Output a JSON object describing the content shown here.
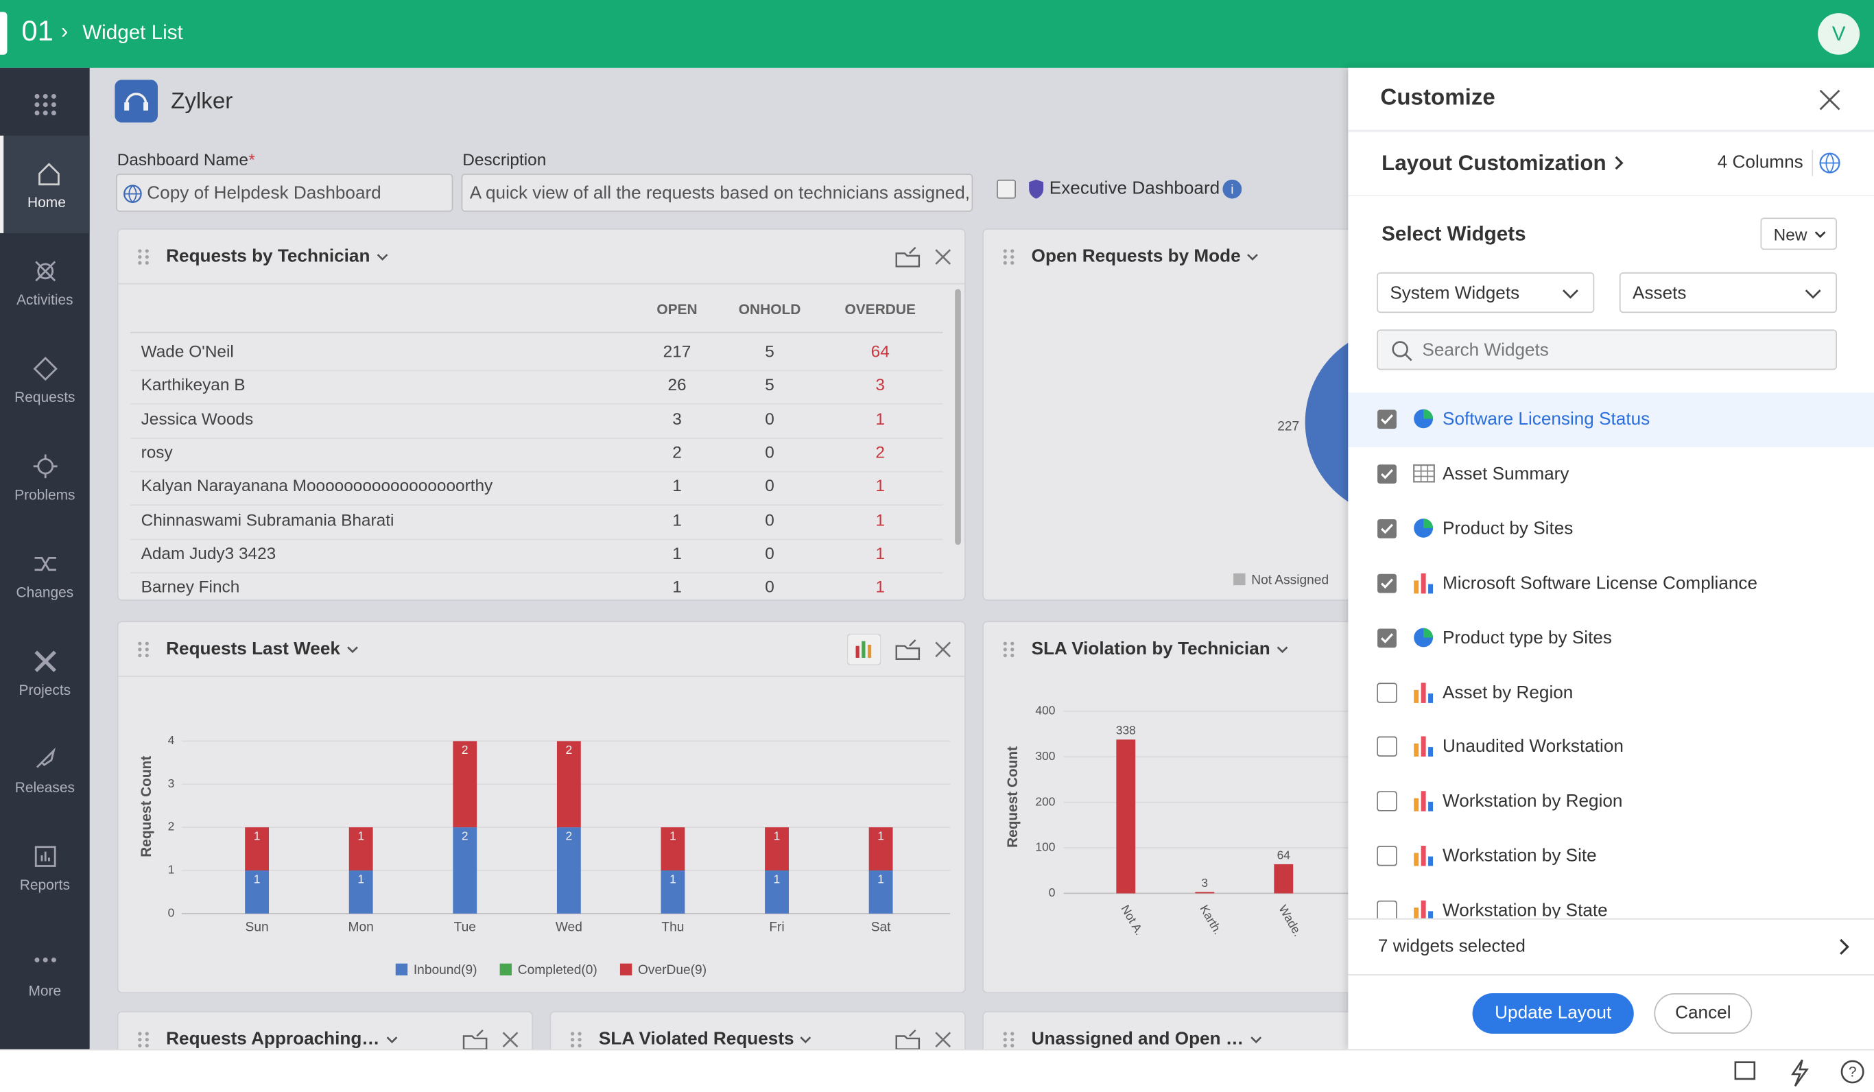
{
  "header": {
    "app_id": "01",
    "title": "Widget List",
    "avatar": "V"
  },
  "sidebar": {
    "items": [
      "Home",
      "Activities",
      "Requests",
      "Problems",
      "Changes",
      "Projects",
      "Releases",
      "Reports",
      "More"
    ],
    "active": 0
  },
  "dashboard": {
    "org": "Zylker",
    "name_label": "Dashboard Name",
    "required_mark": "*",
    "name_value": "Copy of Helpdesk Dashboard",
    "description_label": "Description",
    "description_value": "A quick view of all the requests based on technicians assigned, p",
    "executive_label": "Executive Dashboard"
  },
  "widgets": {
    "requests_by_technician": {
      "title": "Requests by Technician",
      "columns": [
        "OPEN",
        "ONHOLD",
        "OVERDUE"
      ],
      "rows": [
        [
          "Wade O'Neil",
          217,
          5,
          64
        ],
        [
          "Karthikeyan B",
          26,
          5,
          3
        ],
        [
          "Jessica Woods",
          3,
          0,
          1
        ],
        [
          "rosy",
          2,
          0,
          2
        ],
        [
          "Kalyan Narayanana Mooooooooooooooooorthy",
          1,
          0,
          1
        ],
        [
          "Chinnaswami Subramania Bharati",
          1,
          0,
          1
        ],
        [
          "Adam Judy3 3423",
          1,
          0,
          1
        ],
        [
          "Barney Finch",
          1,
          0,
          1
        ]
      ]
    },
    "open_requests_by_mode": {
      "title": "Open Requests by Mode",
      "values": [
        227
      ],
      "color": "#4a78c8",
      "legend": [
        "Not Assigned"
      ]
    },
    "requests_last_week": {
      "title": "Requests Last Week",
      "y_label": "Request Count",
      "categories": [
        "Sun",
        "Mon",
        "Tue",
        "Wed",
        "Thu",
        "Fri",
        "Sat"
      ],
      "series": [
        {
          "name": "Inbound(9)",
          "color": "#4f7fcf",
          "values": [
            1,
            1,
            2,
            2,
            1,
            1,
            1
          ]
        },
        {
          "name": "Completed(0)",
          "color": "#4caf50",
          "values": [
            0,
            0,
            0,
            0,
            0,
            0,
            0
          ]
        },
        {
          "name": "OverDue(9)",
          "color": "#d63a40",
          "values": [
            1,
            1,
            2,
            2,
            1,
            1,
            1
          ]
        }
      ],
      "ylim": [
        0,
        4
      ],
      "yticks": [
        0,
        1,
        2,
        3,
        4
      ]
    },
    "sla_violation": {
      "title": "SLA Violation by Technician",
      "y_label": "Request Count",
      "categories": [
        "Not A.",
        "Karth.",
        "Wade."
      ],
      "values": [
        338,
        3,
        64
      ],
      "color": "#d63a40",
      "ylim": [
        0,
        400
      ],
      "yticks": [
        0,
        100,
        200,
        300,
        400
      ]
    },
    "more": [
      "Requests Approaching…",
      "SLA Violated Requests",
      "Unassigned and Open …"
    ]
  },
  "customize": {
    "title": "Customize",
    "layout_label": "Layout Customization",
    "columns": "4 Columns",
    "select_label": "Select Widgets",
    "new_label": "New",
    "type_filter": "System Widgets",
    "module_filter": "Assets",
    "search_placeholder": "Search Widgets",
    "widgets": [
      {
        "name": "Software Licensing Status",
        "checked": true,
        "icon": "pie",
        "highlighted": true
      },
      {
        "name": "Asset Summary",
        "checked": true,
        "icon": "table",
        "highlighted": false
      },
      {
        "name": "Product by Sites",
        "checked": true,
        "icon": "pie",
        "highlighted": false
      },
      {
        "name": "Microsoft Software License Compliance",
        "checked": true,
        "icon": "bar",
        "highlighted": false
      },
      {
        "name": "Product type by Sites",
        "checked": true,
        "icon": "pie",
        "highlighted": false
      },
      {
        "name": "Asset by Region",
        "checked": false,
        "icon": "bar",
        "highlighted": false
      },
      {
        "name": "Unaudited Workstation",
        "checked": false,
        "icon": "bar",
        "highlighted": false
      },
      {
        "name": "Workstation by Region",
        "checked": false,
        "icon": "bar",
        "highlighted": false
      },
      {
        "name": "Workstation by Site",
        "checked": false,
        "icon": "bar",
        "highlighted": false
      },
      {
        "name": "Workstation by State",
        "checked": false,
        "icon": "bar",
        "highlighted": false
      }
    ],
    "selected_summary": "7 widgets selected",
    "update_label": "Update Layout",
    "cancel_label": "Cancel"
  }
}
